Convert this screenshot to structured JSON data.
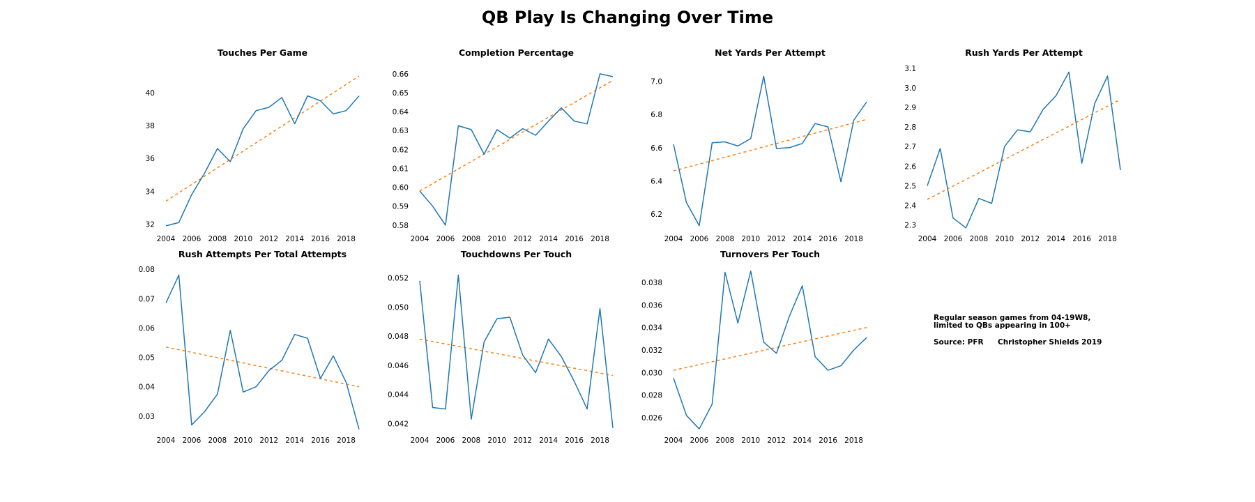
{
  "figure": {
    "title": "QB Play Is Changing Over Time",
    "note_lines": [
      "Regular season games from 04-19W8,",
      "limited to QBs appearing in 100+"
    ],
    "source": "Source: PFR",
    "credit": "Christopher Shields 2019",
    "colors": {
      "line": "#1f77b4",
      "trend": "#ff7f0e"
    }
  },
  "chart_data": [
    {
      "type": "line",
      "title": "Touches Per Game",
      "x": [
        2004,
        2005,
        2006,
        2007,
        2008,
        2009,
        2010,
        2011,
        2012,
        2013,
        2014,
        2015,
        2016,
        2017,
        2018,
        2019
      ],
      "xticks": [
        2004,
        2006,
        2008,
        2010,
        2012,
        2014,
        2016,
        2018
      ],
      "series": [
        {
          "values": [
            31.9,
            32.1,
            33.8,
            35.1,
            36.6,
            35.8,
            37.8,
            38.9,
            39.1,
            39.7,
            38.1,
            39.8,
            39.5,
            38.7,
            38.9,
            39.8
          ]
        }
      ],
      "trend": {
        "start": 33.4,
        "end": 41.0,
        "x_end": 2019.0
      },
      "yticks": [
        32,
        34,
        36,
        38,
        40
      ],
      "tick_labels": [
        "32",
        "34",
        "36",
        "38",
        "40"
      ],
      "ylim": [
        31.6,
        41.6
      ]
    },
    {
      "type": "line",
      "title": "Completion Percentage",
      "x": [
        2004,
        2005,
        2006,
        2007,
        2008,
        2009,
        2010,
        2011,
        2012,
        2013,
        2014,
        2015,
        2016,
        2017,
        2018,
        2019
      ],
      "xticks": [
        2004,
        2006,
        2008,
        2010,
        2012,
        2014,
        2016,
        2018
      ],
      "series": [
        {
          "values": [
            0.598,
            0.59,
            0.58,
            0.6325,
            0.6305,
            0.6175,
            0.6305,
            0.626,
            0.631,
            0.6275,
            0.635,
            0.642,
            0.635,
            0.6335,
            0.66,
            0.6585
          ]
        }
      ],
      "trend": {
        "start": 0.598,
        "end": 0.6565,
        "x_end": 2019.0
      },
      "yticks": [
        0.58,
        0.59,
        0.6,
        0.61,
        0.62,
        0.63,
        0.64,
        0.65,
        0.66
      ],
      "tick_labels": [
        "0.58",
        "0.59",
        "0.60",
        "0.61",
        "0.62",
        "0.63",
        "0.64",
        "0.65",
        "0.66"
      ],
      "ylim": [
        0.577,
        0.664
      ]
    },
    {
      "type": "line",
      "title": "Net Yards Per Attempt",
      "x": [
        2004,
        2005,
        2006,
        2007,
        2008,
        2009,
        2010,
        2011,
        2012,
        2013,
        2014,
        2015,
        2016,
        2017,
        2018,
        2019
      ],
      "xticks": [
        2004,
        2006,
        2008,
        2010,
        2012,
        2014,
        2016,
        2018
      ],
      "series": [
        {
          "values": [
            6.62,
            6.27,
            6.13,
            6.63,
            6.635,
            6.61,
            6.655,
            7.03,
            6.595,
            6.6,
            6.625,
            6.745,
            6.725,
            6.395,
            6.765,
            6.875
          ]
        }
      ],
      "trend": {
        "start": 6.46,
        "end": 6.77,
        "x_end": 2019.0
      },
      "yticks": [
        6.2,
        6.4,
        6.6,
        6.8,
        7.0
      ],
      "tick_labels": [
        "6.2",
        "6.4",
        "6.6",
        "6.8",
        "7.0"
      ],
      "ylim": [
        6.1,
        7.09
      ]
    },
    {
      "type": "line",
      "title": "Rush Yards Per Attempt",
      "x": [
        2004,
        2005,
        2006,
        2007,
        2008,
        2009,
        2010,
        2011,
        2012,
        2013,
        2014,
        2015,
        2016,
        2017,
        2018,
        2019
      ],
      "xticks": [
        2004,
        2006,
        2008,
        2010,
        2012,
        2014,
        2016,
        2018
      ],
      "series": [
        {
          "values": [
            2.5,
            2.69,
            2.335,
            2.285,
            2.435,
            2.41,
            2.7,
            2.785,
            2.775,
            2.89,
            2.96,
            3.08,
            2.615,
            2.92,
            3.06,
            2.58
          ]
        }
      ],
      "trend": {
        "start": 2.43,
        "end": 2.94,
        "x_end": 2019.0
      },
      "yticks": [
        2.3,
        2.4,
        2.5,
        2.6,
        2.7,
        2.8,
        2.9,
        3.0,
        3.1
      ],
      "tick_labels": [
        "2.3",
        "2.4",
        "2.5",
        "2.6",
        "2.7",
        "2.8",
        "2.9",
        "3.0",
        "3.1"
      ],
      "ylim": [
        2.27,
        3.11
      ]
    },
    {
      "type": "line",
      "title": "Rush Attempts Per Total Attempts",
      "x": [
        2004,
        2005,
        2006,
        2007,
        2008,
        2009,
        2010,
        2011,
        2012,
        2013,
        2014,
        2015,
        2016,
        2017,
        2018,
        2019
      ],
      "xticks": [
        2004,
        2006,
        2008,
        2010,
        2012,
        2014,
        2016,
        2018
      ],
      "series": [
        {
          "values": [
            0.0685,
            0.078,
            0.027,
            0.0315,
            0.0375,
            0.0592,
            0.0382,
            0.04,
            0.0455,
            0.049,
            0.0578,
            0.0565,
            0.0428,
            0.0505,
            0.0415,
            0.0255
          ]
        }
      ],
      "trend": {
        "start": 0.0535,
        "end": 0.04,
        "x_end": 2019.0
      },
      "yticks": [
        0.03,
        0.04,
        0.05,
        0.06,
        0.07,
        0.08
      ],
      "tick_labels": [
        "0.03",
        "0.04",
        "0.05",
        "0.06",
        "0.07",
        "0.08"
      ],
      "ylim": [
        0.0245,
        0.0805
      ]
    },
    {
      "type": "line",
      "title": "Touchdowns Per Touch",
      "x": [
        2004,
        2005,
        2006,
        2007,
        2008,
        2009,
        2010,
        2011,
        2012,
        2013,
        2014,
        2015,
        2016,
        2017,
        2018,
        2019
      ],
      "xticks": [
        2004,
        2006,
        2008,
        2010,
        2012,
        2014,
        2016,
        2018
      ],
      "series": [
        {
          "values": [
            0.0518,
            0.0431,
            0.043,
            0.0522,
            0.0423,
            0.0476,
            0.0492,
            0.0493,
            0.0467,
            0.0455,
            0.0478,
            0.0466,
            0.0449,
            0.043,
            0.0499,
            0.0417
          ]
        }
      ],
      "trend": {
        "start": 0.0478,
        "end": 0.0453,
        "x_end": 2019.0
      },
      "yticks": [
        0.042,
        0.044,
        0.046,
        0.048,
        0.05,
        0.052
      ],
      "tick_labels": [
        "0.042",
        "0.044",
        "0.046",
        "0.048",
        "0.050",
        "0.052"
      ],
      "ylim": [
        0.0414,
        0.0527
      ]
    },
    {
      "type": "line",
      "title": "Turnovers Per Touch",
      "x": [
        2004,
        2005,
        2006,
        2007,
        2008,
        2009,
        2010,
        2011,
        2012,
        2013,
        2014,
        2015,
        2016,
        2017,
        2018,
        2019
      ],
      "xticks": [
        2004,
        2006,
        2008,
        2010,
        2012,
        2014,
        2016,
        2018
      ],
      "series": [
        {
          "values": [
            0.0295,
            0.0262,
            0.025,
            0.0272,
            0.0389,
            0.0344,
            0.039,
            0.0327,
            0.0317,
            0.035,
            0.0377,
            0.0314,
            0.0302,
            0.0306,
            0.032,
            0.0331
          ]
        }
      ],
      "trend": {
        "start": 0.0302,
        "end": 0.034,
        "x_end": 2019.0
      },
      "yticks": [
        0.026,
        0.028,
        0.03,
        0.032,
        0.034,
        0.036,
        0.038
      ],
      "tick_labels": [
        "0.026",
        "0.028",
        "0.030",
        "0.032",
        "0.034",
        "0.036",
        "0.038"
      ],
      "ylim": [
        0.0247,
        0.0393
      ]
    }
  ]
}
